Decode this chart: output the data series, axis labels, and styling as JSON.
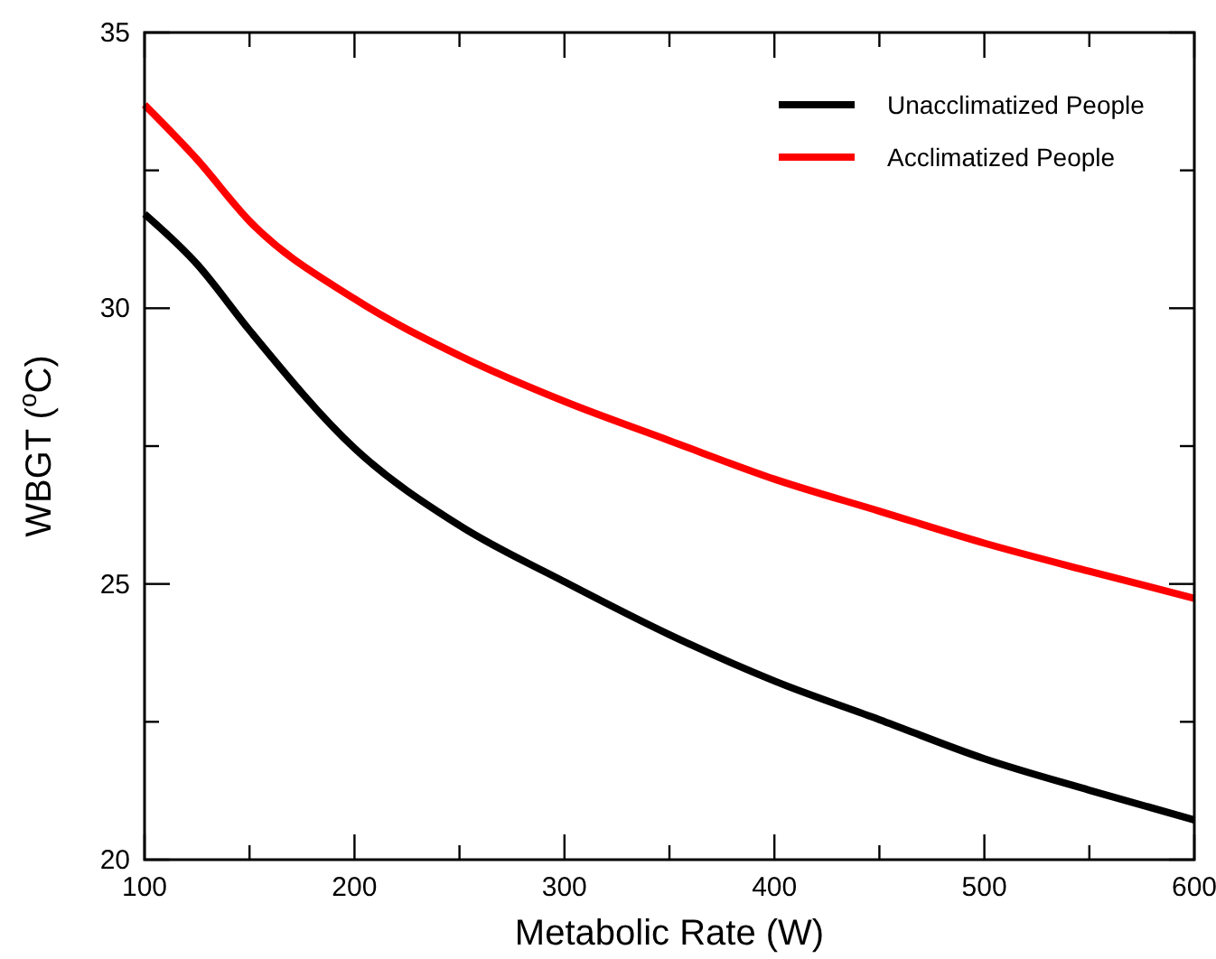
{
  "chart_data": {
    "type": "line",
    "xlabel": "Metabolic Rate (W)",
    "ylabel": "WBGT ($^{o}$C)",
    "x": [
      100,
      125,
      150,
      200,
      250,
      300,
      350,
      400,
      450,
      500,
      550,
      600
    ],
    "series": [
      {
        "name": "Unacclimatized People",
        "color": "#000000",
        "values": [
          31.71,
          30.8,
          29.6,
          27.46,
          26.06,
          25.04,
          24.08,
          23.24,
          22.54,
          21.83,
          21.26,
          20.72
        ]
      },
      {
        "name": "Acclimatized People",
        "color": "#ff0000",
        "values": [
          33.69,
          32.7,
          31.58,
          30.17,
          29.14,
          28.31,
          27.6,
          26.9,
          26.32,
          25.74,
          25.23,
          24.74
        ]
      }
    ],
    "xlim": [
      100,
      600
    ],
    "ylim": [
      20,
      35
    ],
    "xticks": [
      100,
      {
        "value": 150,
        "label": null
      },
      200,
      {
        "value": 250,
        "label": null
      },
      300,
      {
        "value": 350,
        "label": null
      },
      400,
      {
        "value": 450,
        "label": null
      },
      500,
      {
        "value": 550,
        "label": null
      },
      600
    ],
    "yticks": [
      20,
      {
        "value": 22.5,
        "label": null
      },
      25,
      {
        "value": 27.5,
        "label": null
      },
      30,
      {
        "value": 32.5,
        "label": null
      },
      35
    ],
    "grid": false,
    "legend": "top right",
    "marker": "none",
    "line_style": "solid"
  }
}
